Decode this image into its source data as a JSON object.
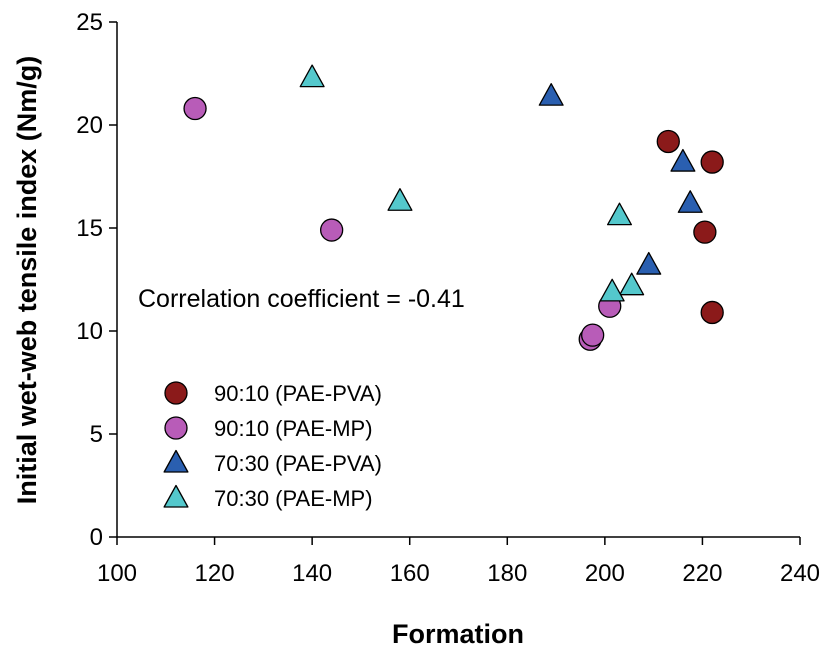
{
  "chart_data": {
    "type": "scatter",
    "xlabel": "Formation",
    "ylabel": "Initial wet-web tensile index (Nm/g)",
    "xlim": [
      100,
      240
    ],
    "ylim": [
      0,
      25
    ],
    "x_ticks": [
      100,
      120,
      140,
      160,
      180,
      200,
      220,
      240
    ],
    "y_ticks": [
      0,
      5,
      10,
      15,
      20,
      25
    ],
    "annotation": "Correlation coefficient = -0.41",
    "legend_position": "bottom-left",
    "series": [
      {
        "name": "90:10 (PAE-PVA)",
        "marker": "circle",
        "color": "#8b1a1a",
        "points": [
          [
            213,
            19.2
          ],
          [
            222,
            18.2
          ],
          [
            220.5,
            14.8
          ],
          [
            222,
            10.9
          ]
        ]
      },
      {
        "name": "90:10 (PAE-MP)",
        "marker": "circle",
        "color": "#b85cb8",
        "points": [
          [
            116,
            20.8
          ],
          [
            144,
            14.9
          ],
          [
            201,
            11.2
          ],
          [
            197,
            9.6
          ],
          [
            197.5,
            9.8
          ]
        ]
      },
      {
        "name": "70:30 (PAE-PVA)",
        "marker": "triangle",
        "color": "#2a5fb0",
        "points": [
          [
            189,
            21.4
          ],
          [
            216,
            18.2
          ],
          [
            217.5,
            16.2
          ],
          [
            209,
            13.2
          ]
        ]
      },
      {
        "name": "70:30 (PAE-MP)",
        "marker": "triangle",
        "color": "#54c8cc",
        "points": [
          [
            140,
            22.3
          ],
          [
            158,
            16.3
          ],
          [
            203,
            15.6
          ],
          [
            205.5,
            12.2
          ],
          [
            201.5,
            11.9
          ]
        ]
      }
    ]
  }
}
